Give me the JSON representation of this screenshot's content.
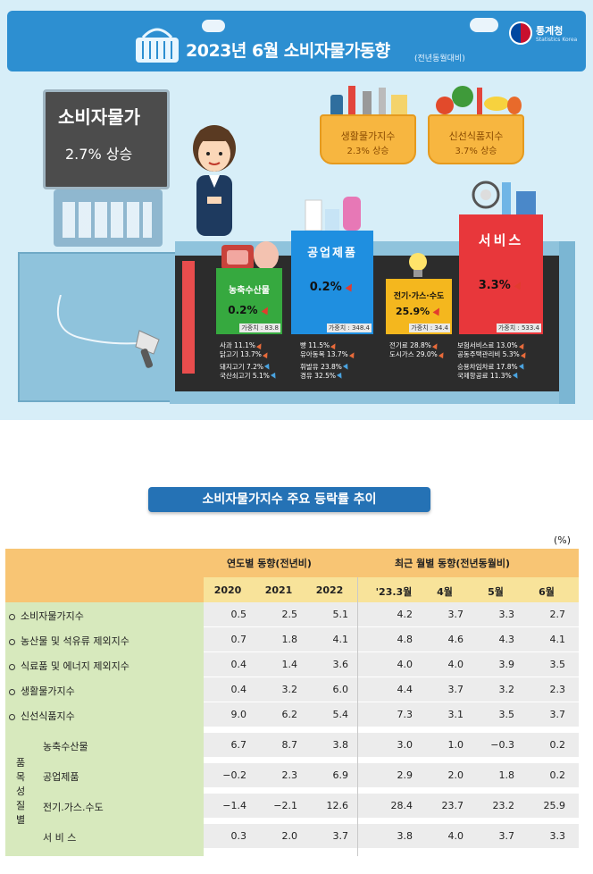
{
  "header": {
    "title": "2023년  6월 소비자물가동향",
    "title_sub": "(전년동월대비)",
    "logo_name": "통계청",
    "logo_sub": "Statistics Korea"
  },
  "register": {
    "label": "소비자물가",
    "value": "2.7% 상승"
  },
  "baskets": {
    "living": {
      "label": "생활물가지수",
      "value": "2.3% 상승"
    },
    "fresh": {
      "label": "신선식품지수",
      "value": "3.7% 상승"
    }
  },
  "products": {
    "agri": {
      "name": "농축수산물",
      "rate": "0.2%",
      "weight": "가중치 : 83.8",
      "items": [
        {
          "text": "사과 11.1%",
          "dir": "up"
        },
        {
          "text": "닭고기 13.7%",
          "dir": "up"
        },
        {
          "text": "돼지고기 7.2%",
          "dir": "down"
        },
        {
          "text": "국산쇠고기 5.1%",
          "dir": "down"
        }
      ]
    },
    "ind": {
      "name": "공업제품",
      "rate": "0.2%",
      "weight": "가중치 : 348.4",
      "items": [
        {
          "text": "빵 11.5%",
          "dir": "up"
        },
        {
          "text": "유아동복 13.7%",
          "dir": "up"
        },
        {
          "text": "휘발유 23.8%",
          "dir": "down"
        },
        {
          "text": "경유 32.5%",
          "dir": "down"
        }
      ]
    },
    "util": {
      "name": "전기·가스·수도",
      "rate": "25.9%",
      "weight": "가중치 : 34.4",
      "items": [
        {
          "text": "전기료 28.8%",
          "dir": "up"
        },
        {
          "text": "도시가스 29.0%",
          "dir": "up"
        }
      ]
    },
    "svc": {
      "name": "서비스",
      "rate": "3.3%",
      "weight": "가중치 : 533.4",
      "items": [
        {
          "text": "보험서비스료 13.0%",
          "dir": "up"
        },
        {
          "text": "공동주택관리비 5.3%",
          "dir": "up"
        },
        {
          "text": "승용차임차료 17.8%",
          "dir": "down"
        },
        {
          "text": "국제항공료 11.3%",
          "dir": "down"
        }
      ]
    }
  },
  "table": {
    "title": "소비자물가지수 주요 등락률 추이",
    "unit": "(%)",
    "group_annual": "연도별 동향(전년비)",
    "group_monthly": "최근 월별 동향(전년동월비)",
    "columns": [
      "2020",
      "2021",
      "2022",
      "'23.3월",
      "4월",
      "5월",
      "6월"
    ],
    "side_label": "품목성질별",
    "rows": [
      {
        "label": "소비자물가지수",
        "bullet": true,
        "values": [
          "0.5",
          "2.5",
          "5.1",
          "4.2",
          "3.7",
          "3.3",
          "2.7"
        ]
      },
      {
        "label": "농산물 및 석유류 제외지수",
        "bullet": true,
        "values": [
          "0.7",
          "1.8",
          "4.1",
          "4.8",
          "4.6",
          "4.3",
          "4.1"
        ]
      },
      {
        "label": "식료품 및 에너지 제외지수",
        "bullet": true,
        "values": [
          "0.4",
          "1.4",
          "3.6",
          "4.0",
          "4.0",
          "3.9",
          "3.5"
        ]
      },
      {
        "label": "생활물가지수",
        "bullet": true,
        "values": [
          "0.4",
          "3.2",
          "6.0",
          "4.4",
          "3.7",
          "3.2",
          "2.3"
        ]
      },
      {
        "label": "신선식품지수",
        "bullet": true,
        "values": [
          "9.0",
          "6.2",
          "5.4",
          "7.3",
          "3.1",
          "3.5",
          "3.7"
        ]
      },
      {
        "label": "농축수산물",
        "bullet": false,
        "values": [
          "6.7",
          "8.7",
          "3.8",
          "3.0",
          "1.0",
          "−0.3",
          "0.2"
        ]
      },
      {
        "label": "공업제품",
        "bullet": false,
        "values": [
          "−0.2",
          "2.3",
          "6.9",
          "2.9",
          "2.0",
          "1.8",
          "0.2"
        ]
      },
      {
        "label": "전기.가스.수도",
        "bullet": false,
        "values": [
          "−1.4",
          "−2.1",
          "12.6",
          "28.4",
          "23.7",
          "23.2",
          "25.9"
        ]
      },
      {
        "label": "서 비 스",
        "bullet": false,
        "values": [
          "0.3",
          "2.0",
          "3.7",
          "3.8",
          "4.0",
          "3.7",
          "3.3"
        ]
      }
    ]
  }
}
